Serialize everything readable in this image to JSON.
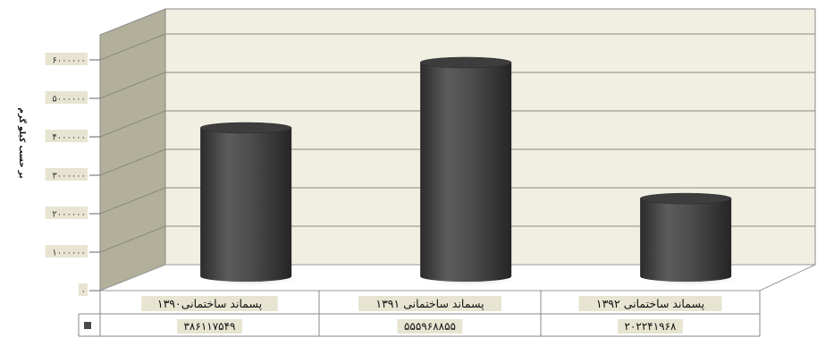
{
  "chart_data": {
    "type": "bar",
    "style": "3d-cylinder",
    "ylabel": "بر حسب کیلو گرم",
    "ylim": [
      0,
      6000000
    ],
    "ytick_values": [
      0,
      1000000,
      2000000,
      3000000,
      4000000,
      5000000,
      6000000
    ],
    "ytick_labels": [
      "۰",
      "۱۰۰۰۰۰۰",
      "۲۰۰۰۰۰۰",
      "۳۰۰۰۰۰۰",
      "۴۰۰۰۰۰۰",
      "۵۰۰۰۰۰۰",
      "۶۰۰۰۰۰۰"
    ],
    "categories": [
      "پسماند ساختمانی۱۳۹۰",
      "پسماند ساختمانی ۱۳۹۱",
      "پسماند ساختمانی ۱۳۹۲"
    ],
    "series": [
      {
        "values": [
          3861175.49,
          5559688.55,
          2022419.68
        ],
        "value_labels": [
          "۳۸۶۱۱۷۵۴۹",
          "۵۵۵۹۶۸۸۵۵",
          "۲۰۲۲۴۱۹۶۸"
        ],
        "color": "#4a4a4a"
      }
    ],
    "grid": true,
    "data_table": true,
    "colors": {
      "plot_wall": "#f1efe2",
      "side_wall": "#b2b09a",
      "floor": "#ffffff",
      "label_highlight": "#e7e4d1"
    }
  }
}
